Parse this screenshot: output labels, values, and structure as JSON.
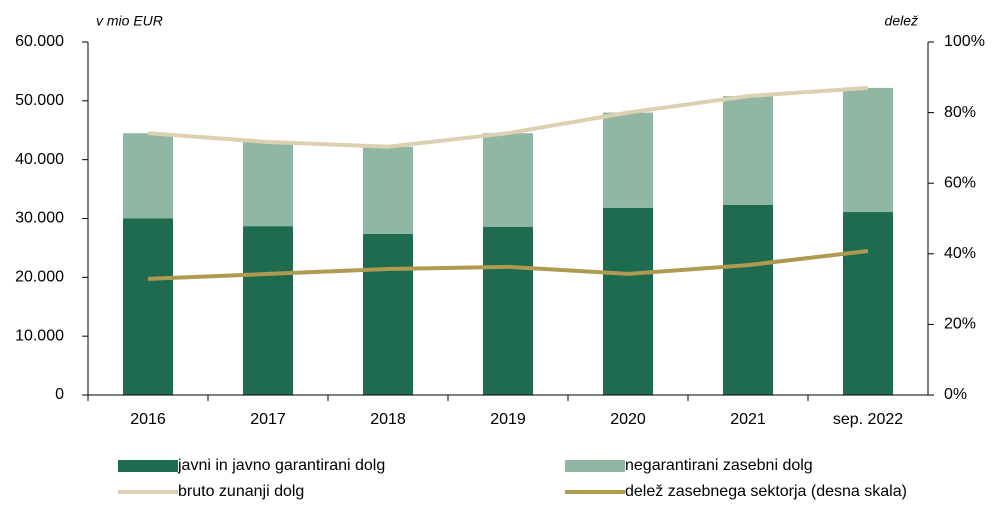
{
  "chart_data": {
    "type": "bar",
    "ylabel": "v mio EUR",
    "y2label": "delež",
    "categories": [
      "2016",
      "2017",
      "2018",
      "2019",
      "2020",
      "2021",
      "sep. 2022"
    ],
    "series": [
      {
        "name": "javni in javno garantirani dolg",
        "color": "#1f6b50",
        "kind": "bar",
        "values": [
          30000,
          28700,
          27400,
          28600,
          31800,
          32300,
          31100
        ]
      },
      {
        "name": "negarantirani zasebni dolg",
        "color": "#8fb7a4",
        "kind": "bar",
        "values": [
          14500,
          14300,
          14800,
          15900,
          16200,
          18500,
          21100
        ]
      },
      {
        "name": "bruto zunanji dolg",
        "color": "#ddd0b0",
        "kind": "line",
        "values": [
          44500,
          43000,
          42200,
          44500,
          48000,
          50800,
          52200
        ]
      },
      {
        "name": "delež zasebnega sektorja (desna skala)",
        "color": "#b09a50",
        "kind": "line",
        "axis": "y2",
        "values": [
          32.9,
          34.3,
          35.7,
          36.3,
          34.3,
          36.8,
          40.8
        ]
      }
    ],
    "ylim": [
      0,
      60000
    ],
    "yticks": [
      0,
      {
        "value": 10000,
        "label": "10.000"
      },
      {
        "value": 20000,
        "label": "20.000"
      },
      {
        "value": 30000,
        "label": "30.000"
      },
      {
        "value": 40000,
        "label": "40.000"
      },
      {
        "value": 50000,
        "label": "50.000"
      },
      {
        "value": 60000,
        "label": "60.000"
      }
    ],
    "y2lim": [
      0,
      100
    ],
    "y2ticks": [
      {
        "value": 0,
        "label": "0%"
      },
      {
        "value": 20,
        "label": "20%"
      },
      {
        "value": 40,
        "label": "40%"
      },
      {
        "value": 60,
        "label": "60%"
      },
      {
        "value": 80,
        "label": "80%"
      },
      {
        "value": 100,
        "label": "100%"
      }
    ]
  }
}
